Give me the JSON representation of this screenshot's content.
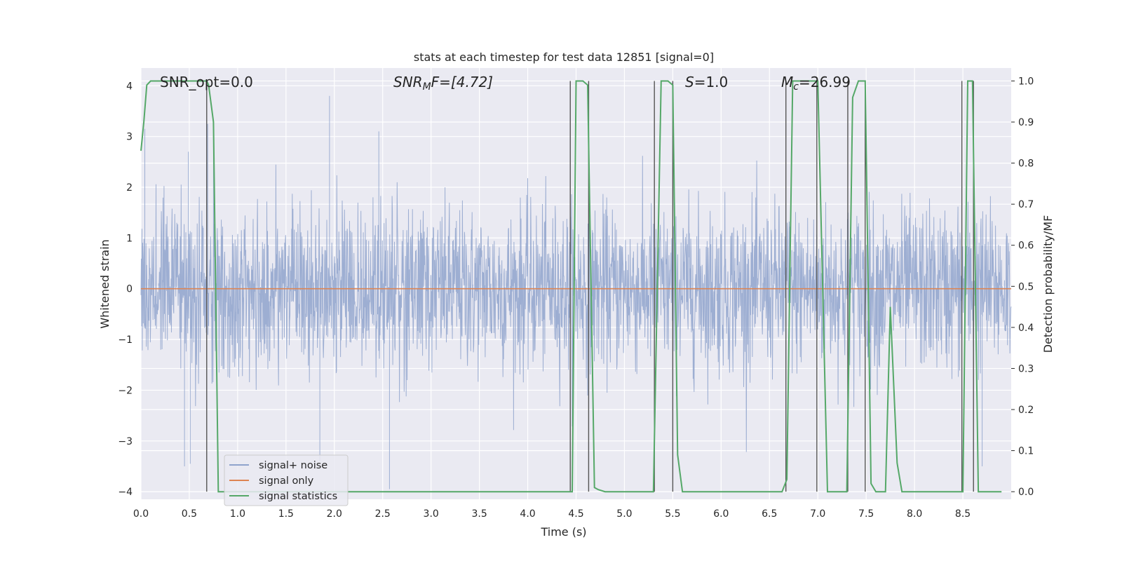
{
  "chart_data": {
    "type": "line",
    "title": "stats at each timestep for test data 12851 [signal=0]",
    "xlabel": "Time (s)",
    "ylabel": "Whitened strain",
    "y2label": "Detection probability/MF",
    "xlim": [
      0.0,
      9.0
    ],
    "ylim": [
      -4.15,
      4.35
    ],
    "y2lim": [
      -0.0185,
      1.0315
    ],
    "x_ticks": [
      "0.0",
      "0.5",
      "1.0",
      "1.5",
      "2.0",
      "2.5",
      "3.0",
      "3.5",
      "4.0",
      "4.5",
      "5.0",
      "5.5",
      "6.0",
      "6.5",
      "7.0",
      "7.5",
      "8.0",
      "8.5"
    ],
    "y_ticks": [
      "−4",
      "−3",
      "−2",
      "−1",
      "0",
      "1",
      "2",
      "3",
      "4"
    ],
    "y2_ticks": [
      "0.0",
      "0.1",
      "0.2",
      "0.3",
      "0.4",
      "0.5",
      "0.6",
      "0.7",
      "0.8",
      "0.9",
      "1.0"
    ],
    "grid": true,
    "legend_position": "lower-left",
    "annotations": {
      "snr_opt": "SNR_opt=0.0",
      "snr_mf_main": "SNR",
      "snr_mf_sub": "M",
      "snr_mf_rest": "F=[4.72]",
      "s_main": "S",
      "s_rest": "=1.0",
      "mc_main": "M",
      "mc_sub": "c",
      "mc_rest": "=26.99"
    },
    "series": [
      {
        "name": "signal+ noise",
        "color": "#8fa3cc",
        "description_sample": "whitened strain noise, sampled",
        "x_range": [
          0.0,
          9.0
        ],
        "noise_sigma": 0.8,
        "peak_samples": [
          {
            "x": 0.04,
            "y": 3.15
          },
          {
            "x": 0.49,
            "y": 2.7
          },
          {
            "x": 0.69,
            "y": 3.25
          },
          {
            "x": 0.75,
            "y": 3.1
          },
          {
            "x": 1.95,
            "y": 3.8
          },
          {
            "x": 2.46,
            "y": 3.1
          },
          {
            "x": 0.45,
            "y": -3.5
          },
          {
            "x": 0.51,
            "y": -3.45
          },
          {
            "x": 1.85,
            "y": -3.4
          },
          {
            "x": 2.57,
            "y": -3.95
          },
          {
            "x": 5.5,
            "y": -2.9
          },
          {
            "x": 8.7,
            "y": -3.5
          }
        ]
      },
      {
        "name": "signal only",
        "color": "#dd8452",
        "x": [
          0.0,
          9.0
        ],
        "y": [
          0.0,
          0.0
        ]
      },
      {
        "name": "signal statistics",
        "color": "#55a868",
        "axis": "right",
        "x": [
          0.0,
          0.03,
          0.06,
          0.1,
          0.2,
          0.68,
          0.7,
          0.75,
          0.8,
          1.5,
          4.4,
          4.46,
          4.5,
          4.57,
          4.62,
          4.69,
          4.73,
          4.8,
          5.3,
          5.38,
          5.45,
          5.5,
          5.55,
          5.6,
          6.0,
          6.63,
          6.68,
          6.74,
          6.76,
          7.0,
          7.1,
          7.3,
          7.36,
          7.42,
          7.49,
          7.55,
          7.6,
          7.7,
          7.75,
          7.82,
          7.87,
          7.93,
          8.5,
          8.55,
          8.6,
          8.66,
          8.72,
          8.9
        ],
        "y": [
          0.83,
          0.9,
          0.99,
          1.0,
          1.0,
          1.0,
          0.99,
          0.9,
          0.0,
          0.0,
          0.0,
          0.0,
          1.0,
          1.0,
          0.99,
          0.01,
          0.005,
          0.0,
          0.0,
          1.0,
          1.0,
          0.99,
          0.09,
          0.0,
          0.0,
          0.0,
          0.03,
          1.0,
          1.0,
          1.0,
          0.0,
          0.0,
          0.96,
          1.0,
          1.0,
          0.02,
          0.0,
          0.0,
          0.45,
          0.07,
          0.0,
          0.0,
          0.0,
          1.0,
          1.0,
          0.0,
          0.0,
          0.0
        ]
      }
    ],
    "vlines_x": [
      0.68,
      4.44,
      4.63,
      5.31,
      5.5,
      6.67,
      6.99,
      7.31,
      7.49,
      8.49,
      8.61
    ]
  }
}
